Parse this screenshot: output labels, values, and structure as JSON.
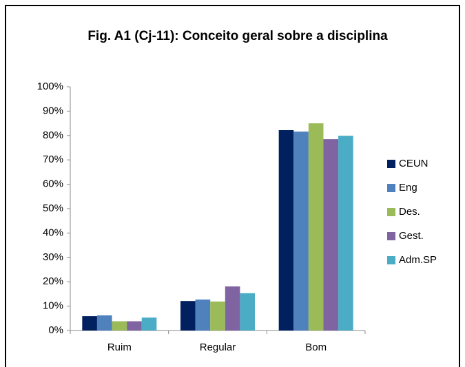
{
  "chart_data": {
    "type": "bar",
    "title": "Fig. A1 (Cj-11): Conceito geral sobre a disciplina",
    "categories": [
      "Ruim",
      "Regular",
      "Bom"
    ],
    "series": [
      {
        "name": "CEUN",
        "color": "#002060",
        "values": [
          5.9,
          12.1,
          82.2
        ]
      },
      {
        "name": "Eng",
        "color": "#4f81bd",
        "values": [
          6.2,
          12.7,
          81.6
        ]
      },
      {
        "name": "Des.",
        "color": "#9bbb59",
        "values": [
          3.8,
          11.9,
          85.0
        ]
      },
      {
        "name": "Gest.",
        "color": "#8064a2",
        "values": [
          3.8,
          18.1,
          78.5
        ]
      },
      {
        "name": "Adm.SP",
        "color": "#4bacc6",
        "values": [
          5.3,
          15.3,
          79.9
        ]
      }
    ],
    "ylim": [
      0,
      100
    ],
    "yticks": [
      {
        "value": 0,
        "label": "0%"
      },
      {
        "value": 10,
        "label": "10%"
      },
      {
        "value": 20,
        "label": "20%"
      },
      {
        "value": 30,
        "label": "30%"
      },
      {
        "value": 40,
        "label": "40%"
      },
      {
        "value": 50,
        "label": "50%"
      },
      {
        "value": 60,
        "label": "60%"
      },
      {
        "value": 70,
        "label": "70%"
      },
      {
        "value": 80,
        "label": "80%"
      },
      {
        "value": 90,
        "label": "90%"
      },
      {
        "value": 100,
        "label": "100%"
      }
    ],
    "legend": "right"
  }
}
